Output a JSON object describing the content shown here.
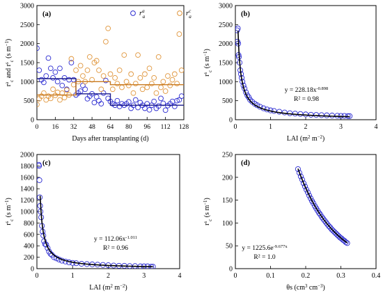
{
  "chart_data": [
    {
      "panel": "a",
      "type": "scatter",
      "panel_label": "(a)",
      "xlabel": "Days after transplanting (d)",
      "ylabel": "r_c^a and r_c^s (s m⁻¹)",
      "ylabel_parts": [
        "r",
        "a",
        "c",
        " and r",
        "s",
        "c",
        " (s m",
        "−1",
        ")"
      ],
      "xlim": [
        0,
        128
      ],
      "ylim": [
        0,
        3000
      ],
      "xticks": [
        0,
        16,
        32,
        48,
        64,
        80,
        96,
        112,
        128
      ],
      "yticks": [
        0,
        500,
        1000,
        1500,
        2000,
        2500,
        3000
      ],
      "legend_position": "top-right",
      "series": [
        {
          "name": "r_a^a",
          "legend_base": "r",
          "legend_sup": "a",
          "legend_sub": "a",
          "color": "#2b2bd1",
          "marker": "open-circle",
          "points": [
            [
              0,
              1880
            ],
            [
              2,
              1300
            ],
            [
              4,
              1050
            ],
            [
              6,
              980
            ],
            [
              8,
              1150
            ],
            [
              10,
              1620
            ],
            [
              12,
              1350
            ],
            [
              14,
              1100
            ],
            [
              16,
              1250
            ],
            [
              18,
              1000
            ],
            [
              20,
              1350
            ],
            [
              22,
              900
            ],
            [
              24,
              1100
            ],
            [
              26,
              800
            ],
            [
              28,
              1050
            ],
            [
              30,
              1500
            ],
            [
              32,
              1050
            ],
            [
              34,
              650
            ],
            [
              36,
              700
            ],
            [
              38,
              750
            ],
            [
              40,
              900
            ],
            [
              42,
              800
            ],
            [
              44,
              550
            ],
            [
              46,
              620
            ],
            [
              48,
              680
            ],
            [
              50,
              450
            ],
            [
              52,
              600
            ],
            [
              54,
              500
            ],
            [
              56,
              420
            ],
            [
              58,
              700
            ],
            [
              60,
              1030
            ],
            [
              62,
              560
            ],
            [
              64,
              480
            ],
            [
              66,
              420
            ],
            [
              68,
              380
            ],
            [
              70,
              500
            ],
            [
              72,
              350
            ],
            [
              74,
              420
            ],
            [
              76,
              380
            ],
            [
              78,
              420
            ],
            [
              80,
              470
            ],
            [
              82,
              300
            ],
            [
              84,
              380
            ],
            [
              86,
              520
            ],
            [
              88,
              320
            ],
            [
              90,
              450
            ],
            [
              92,
              380
            ],
            [
              94,
              300
            ],
            [
              96,
              420
            ],
            [
              98,
              260
            ],
            [
              100,
              380
            ],
            [
              102,
              480
            ],
            [
              104,
              300
            ],
            [
              106,
              360
            ],
            [
              108,
              560
            ],
            [
              110,
              430
            ],
            [
              112,
              250
            ],
            [
              114,
              370
            ],
            [
              116,
              420
            ],
            [
              118,
              480
            ],
            [
              120,
              350
            ],
            [
              122,
              500
            ],
            [
              124,
              520
            ],
            [
              126,
              620
            ]
          ],
          "trend": [
            [
              0,
              1080
            ],
            [
              34,
              1080
            ],
            [
              34,
              680
            ],
            [
              64,
              680
            ],
            [
              64,
              380
            ],
            [
              128,
              380
            ]
          ]
        },
        {
          "name": "r_a^c",
          "legend_base": "r",
          "legend_sup": "c",
          "legend_sub": "a",
          "color": "#e0963c",
          "marker": "open-circle",
          "points": [
            [
              0,
              400
            ],
            [
              2,
              550
            ],
            [
              4,
              620
            ],
            [
              6,
              700
            ],
            [
              8,
              520
            ],
            [
              10,
              620
            ],
            [
              12,
              560
            ],
            [
              14,
              800
            ],
            [
              16,
              640
            ],
            [
              18,
              720
            ],
            [
              20,
              520
            ],
            [
              22,
              700
            ],
            [
              24,
              580
            ],
            [
              26,
              780
            ],
            [
              28,
              650
            ],
            [
              30,
              1600
            ],
            [
              32,
              920
            ],
            [
              34,
              1300
            ],
            [
              36,
              1000
            ],
            [
              38,
              1420
            ],
            [
              40,
              1150
            ],
            [
              42,
              1000
            ],
            [
              44,
              1300
            ],
            [
              46,
              1650
            ],
            [
              48,
              1050
            ],
            [
              50,
              1500
            ],
            [
              52,
              1550
            ],
            [
              54,
              1300
            ],
            [
              56,
              800
            ],
            [
              58,
              1150
            ],
            [
              60,
              2050
            ],
            [
              62,
              2400
            ],
            [
              64,
              1200
            ],
            [
              66,
              800
            ],
            [
              68,
              1100
            ],
            [
              70,
              950
            ],
            [
              72,
              1300
            ],
            [
              74,
              850
            ],
            [
              76,
              1700
            ],
            [
              78,
              1000
            ],
            [
              80,
              900
            ],
            [
              82,
              1200
            ],
            [
              84,
              700
            ],
            [
              86,
              950
            ],
            [
              88,
              1700
            ],
            [
              90,
              1100
            ],
            [
              92,
              800
            ],
            [
              94,
              1200
            ],
            [
              96,
              850
            ],
            [
              98,
              1350
            ],
            [
              100,
              950
            ],
            [
              102,
              1100
            ],
            [
              104,
              700
            ],
            [
              106,
              1650
            ],
            [
              108,
              850
            ],
            [
              110,
              1000
            ],
            [
              112,
              750
            ],
            [
              114,
              1150
            ],
            [
              116,
              900
            ],
            [
              118,
              1050
            ],
            [
              120,
              1200
            ],
            [
              122,
              950
            ],
            [
              124,
              2250
            ],
            [
              126,
              1300
            ]
          ],
          "trend": [
            [
              0,
              650
            ],
            [
              34,
              650
            ],
            [
              34,
              1000
            ],
            [
              64,
              1000
            ],
            [
              64,
              920
            ],
            [
              128,
              920
            ]
          ]
        }
      ]
    },
    {
      "panel": "b",
      "type": "scatter",
      "panel_label": "(b)",
      "xlabel": "LAI (m² m⁻²)",
      "xlabel_parts": [
        "LAI (m",
        "2",
        " m",
        "−2",
        ")"
      ],
      "ylabel_parts": [
        "r",
        "s",
        "c",
        " (s m",
        "−1",
        ")"
      ],
      "xlim": [
        0,
        4
      ],
      "ylim": [
        0,
        3000
      ],
      "xticks": [
        0,
        1,
        2,
        3,
        4
      ],
      "yticks": [
        0,
        500,
        1000,
        1500,
        2000,
        2500,
        3000
      ],
      "equation": "y = 228.18x",
      "equation_exponent": "-0.898",
      "r2": "R² = 0.98",
      "fit": {
        "model": "power",
        "a": 228.18,
        "b": -0.898,
        "x_range": [
          0.075,
          3.25
        ]
      },
      "points": [
        [
          0.05,
          2350
        ],
        [
          0.06,
          2050
        ],
        [
          0.07,
          2400
        ],
        [
          0.08,
          2000
        ],
        [
          0.09,
          1700
        ],
        [
          0.1,
          1650
        ],
        [
          0.12,
          1500
        ],
        [
          0.14,
          1300
        ],
        [
          0.16,
          1200
        ],
        [
          0.18,
          1100
        ],
        [
          0.2,
          1000
        ],
        [
          0.23,
          900
        ],
        [
          0.26,
          820
        ],
        [
          0.3,
          720
        ],
        [
          0.34,
          640
        ],
        [
          0.38,
          590
        ],
        [
          0.42,
          520
        ],
        [
          0.48,
          470
        ],
        [
          0.55,
          420
        ],
        [
          0.62,
          380
        ],
        [
          0.7,
          340
        ],
        [
          0.8,
          300
        ],
        [
          0.9,
          270
        ],
        [
          1.0,
          245
        ],
        [
          1.1,
          230
        ],
        [
          1.25,
          210
        ],
        [
          1.4,
          190
        ],
        [
          1.55,
          170
        ],
        [
          1.7,
          160
        ],
        [
          1.85,
          150
        ],
        [
          2.0,
          140
        ],
        [
          2.15,
          130
        ],
        [
          2.3,
          125
        ],
        [
          2.45,
          120
        ],
        [
          2.6,
          115
        ],
        [
          2.75,
          110
        ],
        [
          2.9,
          105
        ],
        [
          3.0,
          100
        ],
        [
          3.1,
          100
        ],
        [
          3.2,
          95
        ],
        [
          3.25,
          95
        ]
      ]
    },
    {
      "panel": "c",
      "type": "scatter",
      "panel_label": "(c)",
      "xlabel": "LAI (m² m⁻²)",
      "xlabel_parts": [
        "LAI (m",
        "2",
        " m",
        "−2",
        ")"
      ],
      "ylabel_parts": [
        "r",
        "s",
        "c",
        " (s m",
        "−1",
        ")"
      ],
      "xlim": [
        0,
        4
      ],
      "ylim": [
        0,
        2000
      ],
      "xticks": [
        0,
        1,
        2,
        3,
        4
      ],
      "yticks": [
        0,
        200,
        400,
        600,
        800,
        1000,
        1200,
        1400,
        1600,
        1800,
        2000
      ],
      "equation": "y = 112.06x",
      "equation_exponent": "-1.011",
      "r2": "R² = 0.96",
      "fit": {
        "model": "power",
        "a": 112.06,
        "b": -1.011,
        "x_range": [
          0.09,
          3.25
        ]
      },
      "points": [
        [
          0.05,
          1820
        ],
        [
          0.06,
          1800
        ],
        [
          0.07,
          1550
        ],
        [
          0.08,
          1250
        ],
        [
          0.09,
          1100
        ],
        [
          0.1,
          1000
        ],
        [
          0.12,
          900
        ],
        [
          0.14,
          750
        ],
        [
          0.16,
          650
        ],
        [
          0.18,
          580
        ],
        [
          0.2,
          480
        ],
        [
          0.23,
          430
        ],
        [
          0.26,
          420
        ],
        [
          0.3,
          360
        ],
        [
          0.34,
          300
        ],
        [
          0.38,
          260
        ],
        [
          0.42,
          240
        ],
        [
          0.48,
          200
        ],
        [
          0.55,
          180
        ],
        [
          0.62,
          160
        ],
        [
          0.7,
          140
        ],
        [
          0.8,
          125
        ],
        [
          0.9,
          110
        ],
        [
          1.0,
          100
        ],
        [
          1.1,
          95
        ],
        [
          1.25,
          85
        ],
        [
          1.4,
          80
        ],
        [
          1.55,
          75
        ],
        [
          1.7,
          70
        ],
        [
          1.85,
          65
        ],
        [
          2.0,
          60
        ],
        [
          2.15,
          55
        ],
        [
          2.3,
          50
        ],
        [
          2.45,
          50
        ],
        [
          2.6,
          45
        ],
        [
          2.75,
          45
        ],
        [
          2.9,
          40
        ],
        [
          3.0,
          40
        ],
        [
          3.1,
          40
        ],
        [
          3.2,
          35
        ],
        [
          3.25,
          35
        ]
      ]
    },
    {
      "panel": "d",
      "type": "scatter",
      "panel_label": "(d)",
      "xlabel": "θs (cm³ cm⁻³)",
      "xlabel_parts": [
        "θs (cm",
        "3",
        " cm",
        "−3",
        ")"
      ],
      "ylabel_parts": [
        "r",
        "s",
        "c",
        " (s m",
        "−1",
        ")"
      ],
      "xlim": [
        0,
        0.4
      ],
      "ylim": [
        0,
        250
      ],
      "xticks": [
        "0",
        "0.1",
        "0.2",
        "0.3",
        "0.4"
      ],
      "xtick_values": [
        0,
        0.1,
        0.2,
        0.3,
        0.4
      ],
      "yticks": [
        0,
        50,
        100,
        150,
        200,
        250
      ],
      "equation": "y = 1225.6e",
      "equation_exponent": "-9.677x",
      "r2": "R² = 1.0",
      "fit": {
        "model": "exponential",
        "a": 1225.6,
        "b": -9.677,
        "x_range": [
          0.178,
          0.318
        ]
      },
      "points": [
        [
          0.178,
          218
        ],
        [
          0.182,
          210
        ],
        [
          0.186,
          202
        ],
        [
          0.19,
          195
        ],
        [
          0.194,
          187
        ],
        [
          0.198,
          180
        ],
        [
          0.202,
          173
        ],
        [
          0.206,
          167
        ],
        [
          0.21,
          160
        ],
        [
          0.214,
          154
        ],
        [
          0.218,
          148
        ],
        [
          0.222,
          143
        ],
        [
          0.226,
          137
        ],
        [
          0.23,
          132
        ],
        [
          0.234,
          127
        ],
        [
          0.238,
          122
        ],
        [
          0.242,
          118
        ],
        [
          0.246,
          113
        ],
        [
          0.25,
          109
        ],
        [
          0.254,
          105
        ],
        [
          0.258,
          101
        ],
        [
          0.262,
          97
        ],
        [
          0.266,
          93
        ],
        [
          0.27,
          90
        ],
        [
          0.274,
          86
        ],
        [
          0.278,
          83
        ],
        [
          0.282,
          80
        ],
        [
          0.286,
          77
        ],
        [
          0.29,
          74
        ],
        [
          0.294,
          71
        ],
        [
          0.298,
          68
        ],
        [
          0.302,
          66
        ],
        [
          0.306,
          63
        ],
        [
          0.31,
          61
        ],
        [
          0.314,
          58
        ],
        [
          0.318,
          56
        ]
      ]
    }
  ]
}
